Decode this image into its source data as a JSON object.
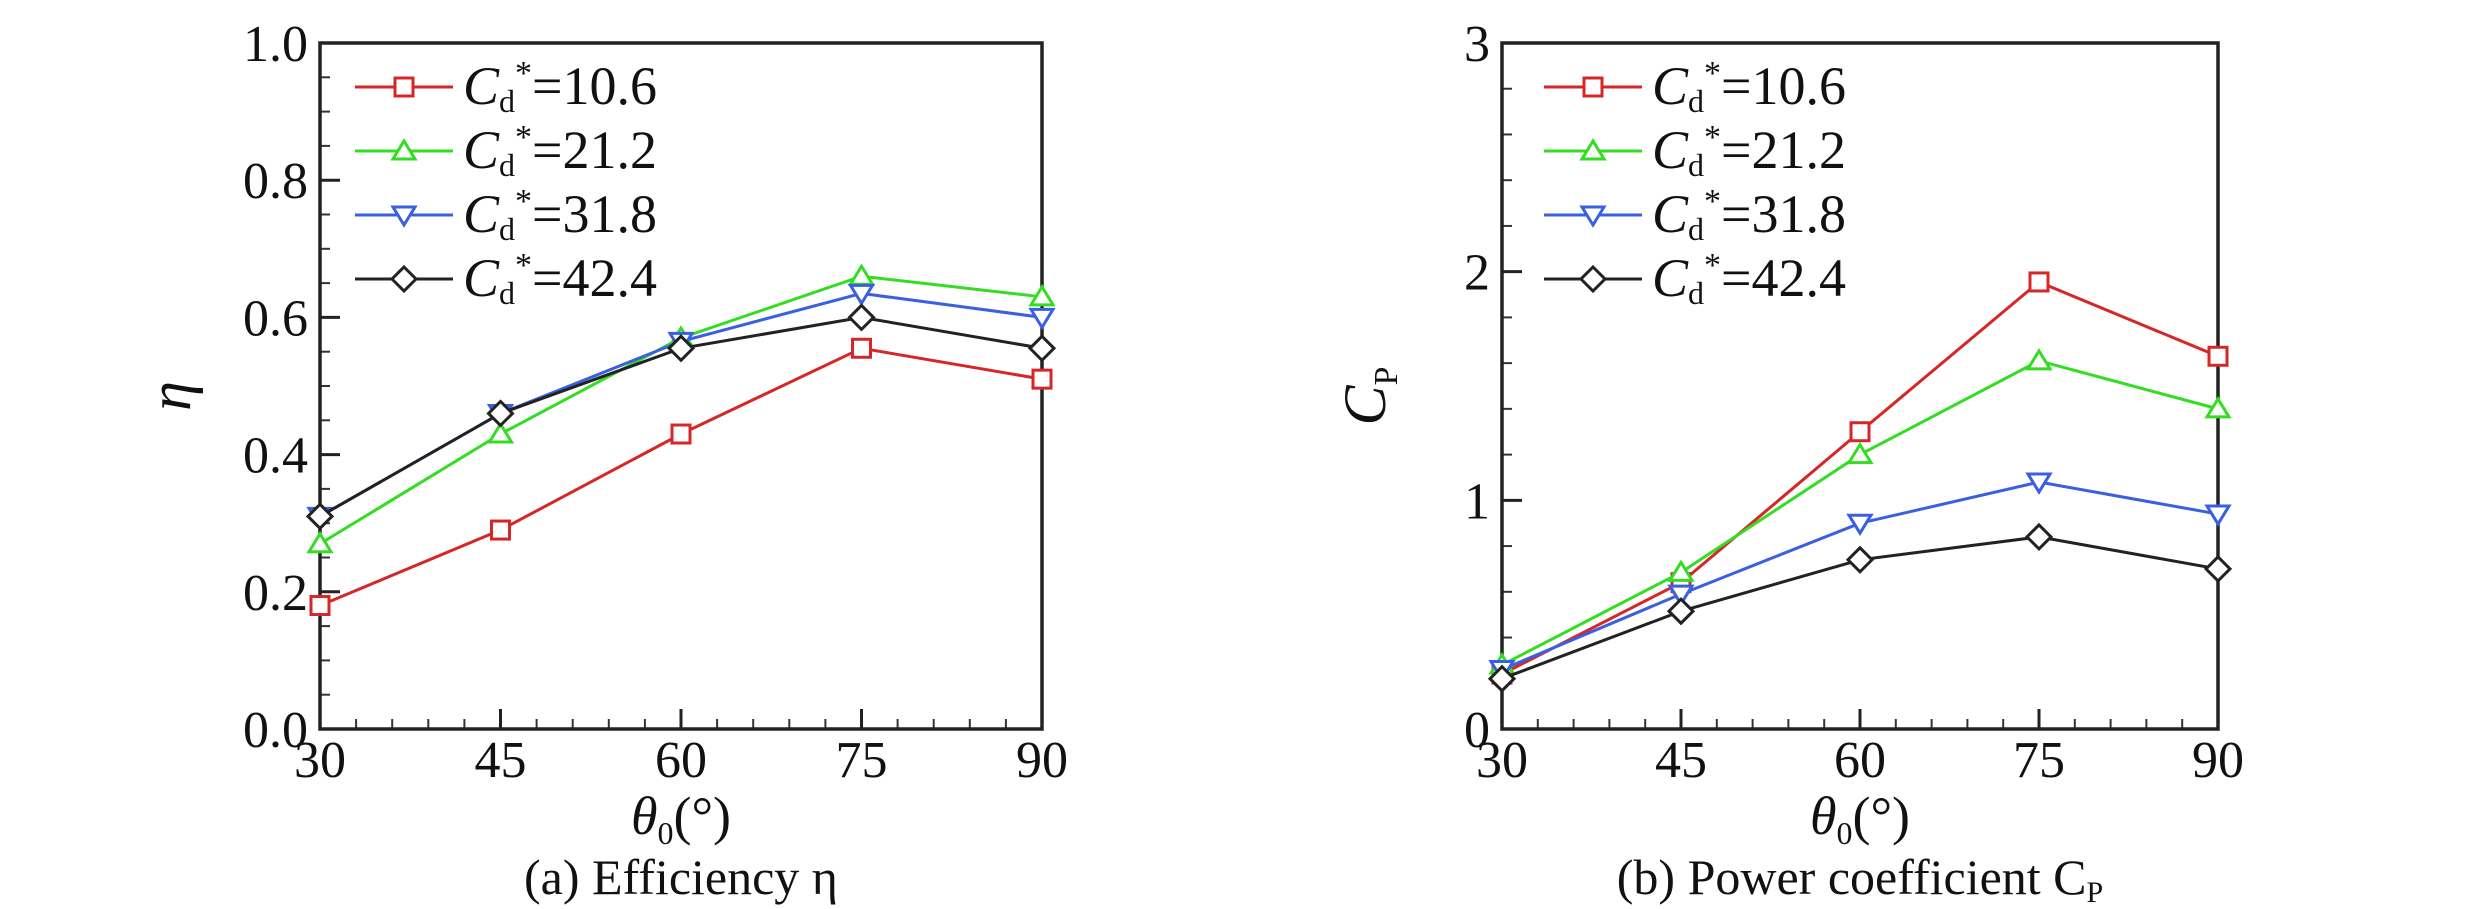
{
  "chart_data": [
    {
      "type": "line",
      "title": "",
      "caption": "(a) Efficiency η",
      "xlabel": "θ",
      "xlabel_sub": "0",
      "xlabel_unit": "(°)",
      "ylabel": "η",
      "ylabel_sub": "",
      "x": [
        30,
        45,
        60,
        75,
        90
      ],
      "xlim": [
        30,
        90
      ],
      "ylim": [
        0,
        1.0
      ],
      "xticks": [
        "30",
        "45",
        "60",
        "75",
        "90"
      ],
      "yticks": [
        "0.0",
        "0.2",
        "0.4",
        "0.6",
        "0.8",
        "1.0"
      ],
      "ytick_values": [
        0,
        0.2,
        0.4,
        0.6,
        0.8,
        1.0
      ],
      "yminor_step": 0.05,
      "grid": false,
      "legend_position": "top-left",
      "series": [
        {
          "name": "Cd*=10.6",
          "label_value": "=10.6",
          "color": "#d62728",
          "marker": "square",
          "values": [
            0.18,
            0.29,
            0.43,
            0.555,
            0.51
          ]
        },
        {
          "name": "Cd*=21.2",
          "label_value": "=21.2",
          "color": "#33dd22",
          "marker": "triangle-up",
          "values": [
            0.27,
            0.43,
            0.57,
            0.66,
            0.63
          ]
        },
        {
          "name": "Cd*=31.8",
          "label_value": "=31.8",
          "color": "#3a5fe0",
          "marker": "triangle-down",
          "values": [
            0.31,
            0.46,
            0.565,
            0.635,
            0.6
          ]
        },
        {
          "name": "Cd*=42.4",
          "label_value": "=42.4",
          "color": "#222222",
          "marker": "diamond",
          "values": [
            0.31,
            0.46,
            0.555,
            0.6,
            0.555
          ]
        }
      ]
    },
    {
      "type": "line",
      "title": "",
      "caption": "(b) Power coefficient C",
      "caption_sub": "P",
      "xlabel": "θ",
      "xlabel_sub": "0",
      "xlabel_unit": "(°)",
      "ylabel": "C",
      "ylabel_sub": "P",
      "x": [
        30,
        45,
        60,
        75,
        90
      ],
      "xlim": [
        30,
        90
      ],
      "ylim": [
        0,
        3
      ],
      "xticks": [
        "30",
        "45",
        "60",
        "75",
        "90"
      ],
      "yticks": [
        "0",
        "1",
        "2",
        "3"
      ],
      "ytick_values": [
        0,
        1,
        2,
        3
      ],
      "yminor_step": 0.2,
      "grid": false,
      "legend_position": "top-left",
      "series": [
        {
          "name": "Cd*=10.6",
          "label_value": "=10.6",
          "color": "#d62728",
          "marker": "square",
          "values": [
            0.24,
            0.64,
            1.3,
            1.955,
            1.63
          ]
        },
        {
          "name": "Cd*=21.2",
          "label_value": "=21.2",
          "color": "#33dd22",
          "marker": "triangle-up",
          "values": [
            0.28,
            0.685,
            1.2,
            1.61,
            1.4
          ]
        },
        {
          "name": "Cd*=31.8",
          "label_value": "=31.8",
          "color": "#3a5fe0",
          "marker": "triangle-down",
          "values": [
            0.26,
            0.59,
            0.9,
            1.08,
            0.94
          ]
        },
        {
          "name": "Cd*=42.4",
          "label_value": "=42.4",
          "color": "#222222",
          "marker": "diamond",
          "values": [
            0.22,
            0.515,
            0.74,
            0.84,
            0.7
          ]
        }
      ]
    }
  ]
}
